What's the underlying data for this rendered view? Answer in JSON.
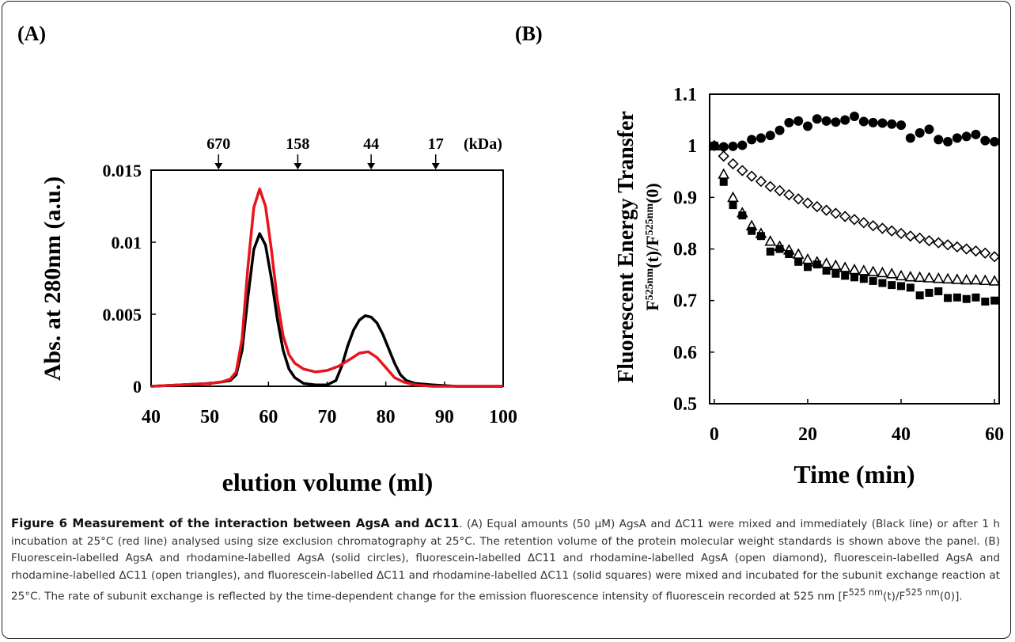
{
  "figure": {
    "panel_a_label": "(A)",
    "panel_b_label": "(B)"
  },
  "chart_data": [
    {
      "type": "line",
      "panel": "(A)",
      "xlabel": "elution volume (ml)",
      "ylabel": "Abs. at 280nm (a.u.)",
      "xlim": [
        40,
        100
      ],
      "ylim": [
        0,
        0.015
      ],
      "x_ticks": [
        "40",
        "50",
        "60",
        "70",
        "80",
        "90",
        "100"
      ],
      "y_ticks": [
        "0",
        "0.005",
        "0.01",
        "0.015"
      ],
      "marker_unit": "(kDa)",
      "markers": [
        {
          "label": "670",
          "x": 51.5
        },
        {
          "label": "158",
          "x": 65
        },
        {
          "label": "44",
          "x": 77.5
        },
        {
          "label": "17",
          "x": 88.5
        }
      ],
      "series": [
        {
          "color": "#000000",
          "x": [
            40,
            45,
            50,
            52,
            53.5,
            54.5,
            55.5,
            56.5,
            57.5,
            58.5,
            59.5,
            60.5,
            61.5,
            62.5,
            63.5,
            64.5,
            66,
            68,
            70,
            71.5,
            72.5,
            73.5,
            74.5,
            75.5,
            76.5,
            77.5,
            78.5,
            79.5,
            80.5,
            81.5,
            82.5,
            83.5,
            85,
            88,
            92,
            100
          ],
          "y": [
            0,
            0.0001,
            0.0002,
            0.0003,
            0.0004,
            0.0008,
            0.0025,
            0.0062,
            0.0095,
            0.0106,
            0.0098,
            0.0075,
            0.0047,
            0.0025,
            0.0012,
            0.0006,
            0.0002,
            0.0001,
            0.0001,
            0.0004,
            0.0014,
            0.0028,
            0.0039,
            0.0046,
            0.0049,
            0.0048,
            0.0044,
            0.0036,
            0.0026,
            0.0016,
            0.0008,
            0.0004,
            0.0002,
            0.0001,
            0,
            0
          ]
        },
        {
          "color": "#e8141c",
          "x": [
            40,
            45,
            50,
            52,
            53.5,
            54.5,
            55.5,
            56.5,
            57.5,
            58.5,
            59.5,
            60.5,
            61.5,
            62.5,
            63.5,
            64.5,
            66,
            68,
            70,
            72,
            74,
            75.5,
            77,
            78.5,
            80,
            81.5,
            83,
            85,
            88,
            92,
            100
          ],
          "y": [
            0,
            0.0001,
            0.0002,
            0.0003,
            0.0005,
            0.001,
            0.0033,
            0.0083,
            0.0124,
            0.0137,
            0.0125,
            0.0095,
            0.006,
            0.0035,
            0.0022,
            0.0016,
            0.0012,
            0.001,
            0.0011,
            0.0014,
            0.0019,
            0.0023,
            0.0024,
            0.002,
            0.0013,
            0.0006,
            0.0003,
            0.0001,
            0,
            0,
            0
          ]
        }
      ]
    },
    {
      "type": "scatter",
      "panel": "(B)",
      "xlabel": "Time (min)",
      "ylabel": "Fluorescent Energy Transfer",
      "ylabel2": "F525nm(t)/F525nm(0)",
      "xlim": [
        -1,
        61
      ],
      "ylim": [
        0.5,
        1.1
      ],
      "x_ticks": [
        "0",
        "20",
        "40",
        "60"
      ],
      "y_ticks": [
        "0.5",
        "0.6",
        "0.7",
        "0.8",
        "0.9",
        "1",
        "1.1"
      ],
      "series": [
        {
          "marker": "solid circles",
          "x": [
            0,
            2,
            4,
            6,
            8,
            10,
            12,
            14,
            16,
            18,
            20,
            22,
            24,
            26,
            28,
            30,
            32,
            34,
            36,
            38,
            40,
            42,
            44,
            46,
            48,
            50,
            52,
            54,
            56,
            58,
            60
          ],
          "y": [
            1.0,
            0.998,
            0.999,
            1.001,
            1.012,
            1.015,
            1.02,
            1.03,
            1.045,
            1.048,
            1.038,
            1.052,
            1.048,
            1.046,
            1.05,
            1.057,
            1.047,
            1.045,
            1.044,
            1.042,
            1.04,
            1.015,
            1.025,
            1.032,
            1.012,
            1.008,
            1.015,
            1.018,
            1.022,
            1.01,
            1.008
          ]
        },
        {
          "marker": "open diamond",
          "x": [
            0,
            2,
            4,
            6,
            8,
            10,
            12,
            14,
            16,
            18,
            20,
            22,
            24,
            26,
            28,
            30,
            32,
            34,
            36,
            38,
            40,
            42,
            44,
            46,
            48,
            50,
            52,
            54,
            56,
            58,
            60
          ],
          "y": [
            1.0,
            0.98,
            0.965,
            0.952,
            0.941,
            0.931,
            0.921,
            0.913,
            0.905,
            0.897,
            0.889,
            0.882,
            0.875,
            0.869,
            0.863,
            0.857,
            0.851,
            0.845,
            0.84,
            0.835,
            0.83,
            0.825,
            0.821,
            0.816,
            0.812,
            0.808,
            0.804,
            0.8,
            0.796,
            0.792,
            0.785
          ]
        },
        {
          "marker": "open triangles",
          "x": [
            0,
            2,
            4,
            6,
            8,
            10,
            12,
            14,
            16,
            18,
            20,
            22,
            24,
            26,
            28,
            30,
            32,
            34,
            36,
            38,
            40,
            42,
            44,
            46,
            48,
            50,
            52,
            54,
            56,
            58,
            60
          ],
          "y": [
            1.0,
            0.945,
            0.9,
            0.87,
            0.845,
            0.83,
            0.815,
            0.805,
            0.798,
            0.79,
            0.78,
            0.775,
            0.772,
            0.768,
            0.764,
            0.76,
            0.758,
            0.756,
            0.754,
            0.752,
            0.748,
            0.746,
            0.745,
            0.744,
            0.743,
            0.742,
            0.741,
            0.74,
            0.74,
            0.739,
            0.738
          ]
        },
        {
          "marker": "solid squares",
          "x": [
            0,
            2,
            4,
            6,
            8,
            10,
            12,
            14,
            16,
            18,
            20,
            22,
            24,
            26,
            28,
            30,
            32,
            34,
            36,
            38,
            40,
            42,
            44,
            46,
            48,
            50,
            52,
            54,
            56,
            58,
            60
          ],
          "y": [
            1.0,
            0.93,
            0.885,
            0.865,
            0.835,
            0.825,
            0.795,
            0.8,
            0.79,
            0.775,
            0.765,
            0.77,
            0.758,
            0.752,
            0.748,
            0.745,
            0.742,
            0.738,
            0.734,
            0.73,
            0.728,
            0.725,
            0.71,
            0.715,
            0.718,
            0.705,
            0.706,
            0.703,
            0.706,
            0.698,
            0.7
          ]
        }
      ]
    }
  ],
  "caption": {
    "lead": "Figure 6 Measurement of the interaction between AgsA and ΔC11",
    "body": ". (A) Equal amounts (50 μM) AgsA and ΔC11 were mixed and immediately (Black line) or after 1 h incubation at 25°C (red line) analysed using size exclusion chromatography at 25°C. The retention volume of the protein molecular weight standards is shown above the panel. (B) Fluorescein-labelled AgsA and rhodamine-labelled AgsA (solid circles), fluorescein-labelled ΔC11 and rhodamine-labelled AgsA (open diamond), fluorescein-labelled AgsA and rhodamine-labelled ΔC11 (open triangles), and fluorescein-labelled ΔC11 and rhodamine-labelled ΔC11 (solid squares) were mixed and incubated for the subunit exchange reaction at 25°C. The rate of subunit exchange is reflected by the time-dependent change for the emission fluorescence intensity of fluorescein recorded at 525 nm [F",
    "sup1": "525 nm",
    "mid": "(t)/F",
    "sup2": "525 nm",
    "end": "(0)]."
  }
}
